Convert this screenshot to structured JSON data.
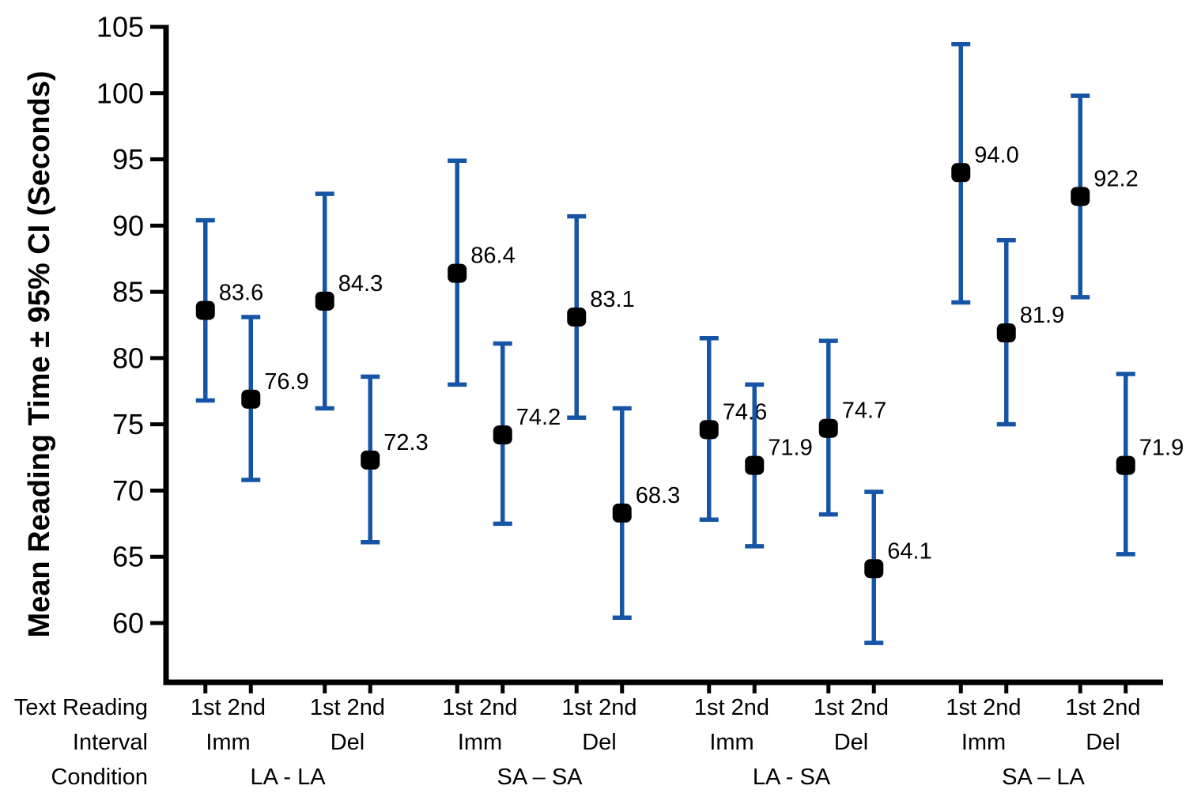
{
  "figure": {
    "background": "#ffffff",
    "row_headers": {
      "reading": "Text Reading",
      "interval": "Interval",
      "condition": "Condition"
    },
    "colors": {
      "error_bar": "#1655A6",
      "point": "#000000",
      "axis": "#000000",
      "label_text": "#000000"
    }
  },
  "chart_data": {
    "type": "scatter",
    "title": "",
    "xlabel": "",
    "ylabel": "Mean Reading Time ± 95% CI (Seconds)",
    "ylim": [
      56,
      106
    ],
    "y_ticks": [
      105,
      100,
      95,
      90,
      85,
      80,
      75,
      70,
      65,
      60
    ],
    "grid": false,
    "legend": "none",
    "marker": "black rounded square",
    "error_bar_style": "blue capped vertical 95% CI",
    "groups": [
      {
        "condition": "LA - LA",
        "intervals": [
          {
            "label": "Imm",
            "points": [
              {
                "reading": "1st",
                "mean": 83.6,
                "ci_low": 76.8,
                "ci_high": 90.4
              },
              {
                "reading": "2nd",
                "mean": 76.9,
                "ci_low": 70.8,
                "ci_high": 83.1
              }
            ]
          },
          {
            "label": "Del",
            "points": [
              {
                "reading": "1st",
                "mean": 84.3,
                "ci_low": 76.2,
                "ci_high": 92.4
              },
              {
                "reading": "2nd",
                "mean": 72.3,
                "ci_low": 66.1,
                "ci_high": 78.6
              }
            ]
          }
        ]
      },
      {
        "condition": "SA – SA",
        "intervals": [
          {
            "label": "Imm",
            "points": [
              {
                "reading": "1st",
                "mean": 86.4,
                "ci_low": 78.0,
                "ci_high": 94.9
              },
              {
                "reading": "2nd",
                "mean": 74.2,
                "ci_low": 67.5,
                "ci_high": 81.1
              }
            ]
          },
          {
            "label": "Del",
            "points": [
              {
                "reading": "1st",
                "mean": 83.1,
                "ci_low": 75.5,
                "ci_high": 90.7
              },
              {
                "reading": "2nd",
                "mean": 68.3,
                "ci_low": 60.4,
                "ci_high": 76.2
              }
            ]
          }
        ]
      },
      {
        "condition": "LA - SA",
        "intervals": [
          {
            "label": "Imm",
            "points": [
              {
                "reading": "1st",
                "mean": 74.6,
                "ci_low": 67.8,
                "ci_high": 81.5
              },
              {
                "reading": "2nd",
                "mean": 71.9,
                "ci_low": 65.8,
                "ci_high": 78.0
              }
            ]
          },
          {
            "label": "Del",
            "points": [
              {
                "reading": "1st",
                "mean": 74.7,
                "ci_low": 68.2,
                "ci_high": 81.3
              },
              {
                "reading": "2nd",
                "mean": 64.1,
                "ci_low": 58.5,
                "ci_high": 69.9
              }
            ]
          }
        ]
      },
      {
        "condition": "SA – LA",
        "intervals": [
          {
            "label": "Imm",
            "points": [
              {
                "reading": "1st",
                "mean": 94.0,
                "ci_low": 84.2,
                "ci_high": 103.7
              },
              {
                "reading": "2nd",
                "mean": 81.9,
                "ci_low": 75.0,
                "ci_high": 88.9
              }
            ]
          },
          {
            "label": "Del",
            "points": [
              {
                "reading": "1st",
                "mean": 92.2,
                "ci_low": 84.6,
                "ci_high": 99.8
              },
              {
                "reading": "2nd",
                "mean": 71.9,
                "ci_low": 65.2,
                "ci_high": 78.8
              }
            ]
          }
        ]
      }
    ]
  }
}
